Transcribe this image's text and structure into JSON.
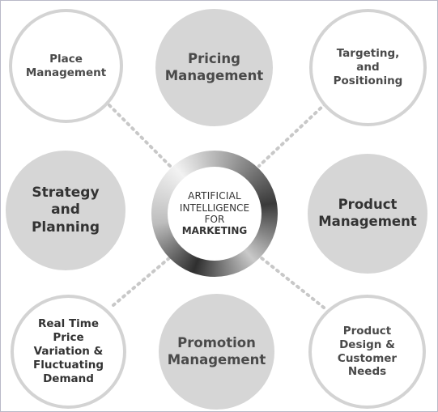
{
  "center": {
    "line1": "ARTIFICIAL",
    "line2": "INTELLIGENCE",
    "line3": "FOR",
    "line4": "MARKETING"
  },
  "nodes": {
    "place": "Place\nManagement",
    "pricing": "Pricing\nManagement",
    "targeting": "Targeting,\nand\nPositioning",
    "strategy": "Strategy\nand\nPlanning",
    "product": "Product\nManagement",
    "realtime": "Real Time\nPrice\nVariation &\nFluctuating\nDemand",
    "promotion": "Promotion\nManagement",
    "design": "Product\nDesign &\nCustomer\nNeeds"
  },
  "colors": {
    "outline_border": "#d3d3d3",
    "filled_background": "#d6d6d6",
    "text": "#4a4a4a",
    "connector": "#c8c8c8"
  }
}
